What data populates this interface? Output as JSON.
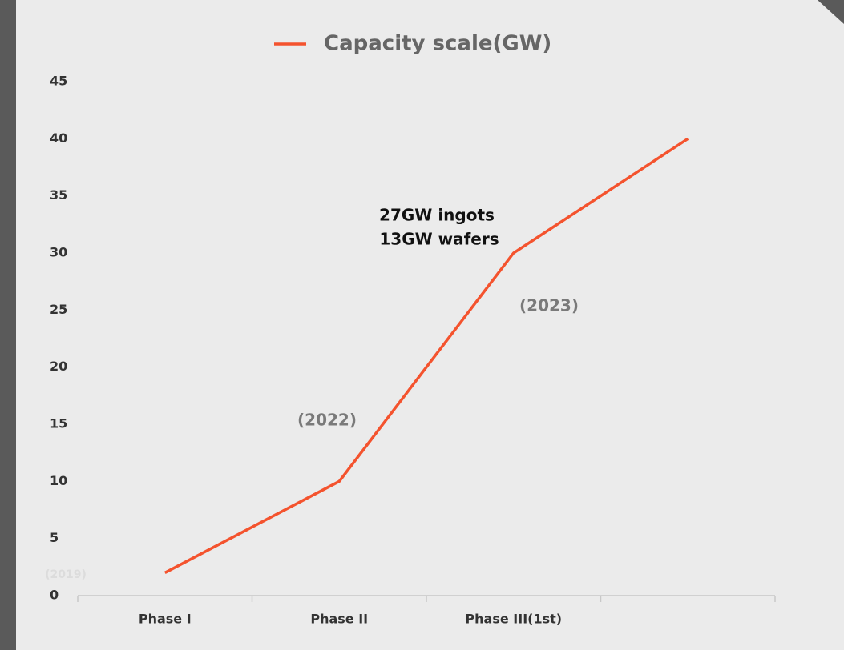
{
  "chart_data": {
    "type": "line",
    "categories": [
      "Phase I",
      "Phase II",
      "Phase III(1st)",
      null
    ],
    "series": [
      {
        "name": "Capacity scale(GW)",
        "color": "#f4532e",
        "values": [
          2,
          10,
          30,
          40
        ]
      }
    ],
    "ylim": [
      0,
      45
    ],
    "yticks": [
      0,
      5,
      10,
      15,
      20,
      25,
      30,
      35,
      40,
      45
    ],
    "grid": false,
    "legend": "top",
    "annotations": [
      "(2019)",
      "(2022)",
      "(2023)",
      "27GW ingots",
      "13GW wafers"
    ]
  }
}
